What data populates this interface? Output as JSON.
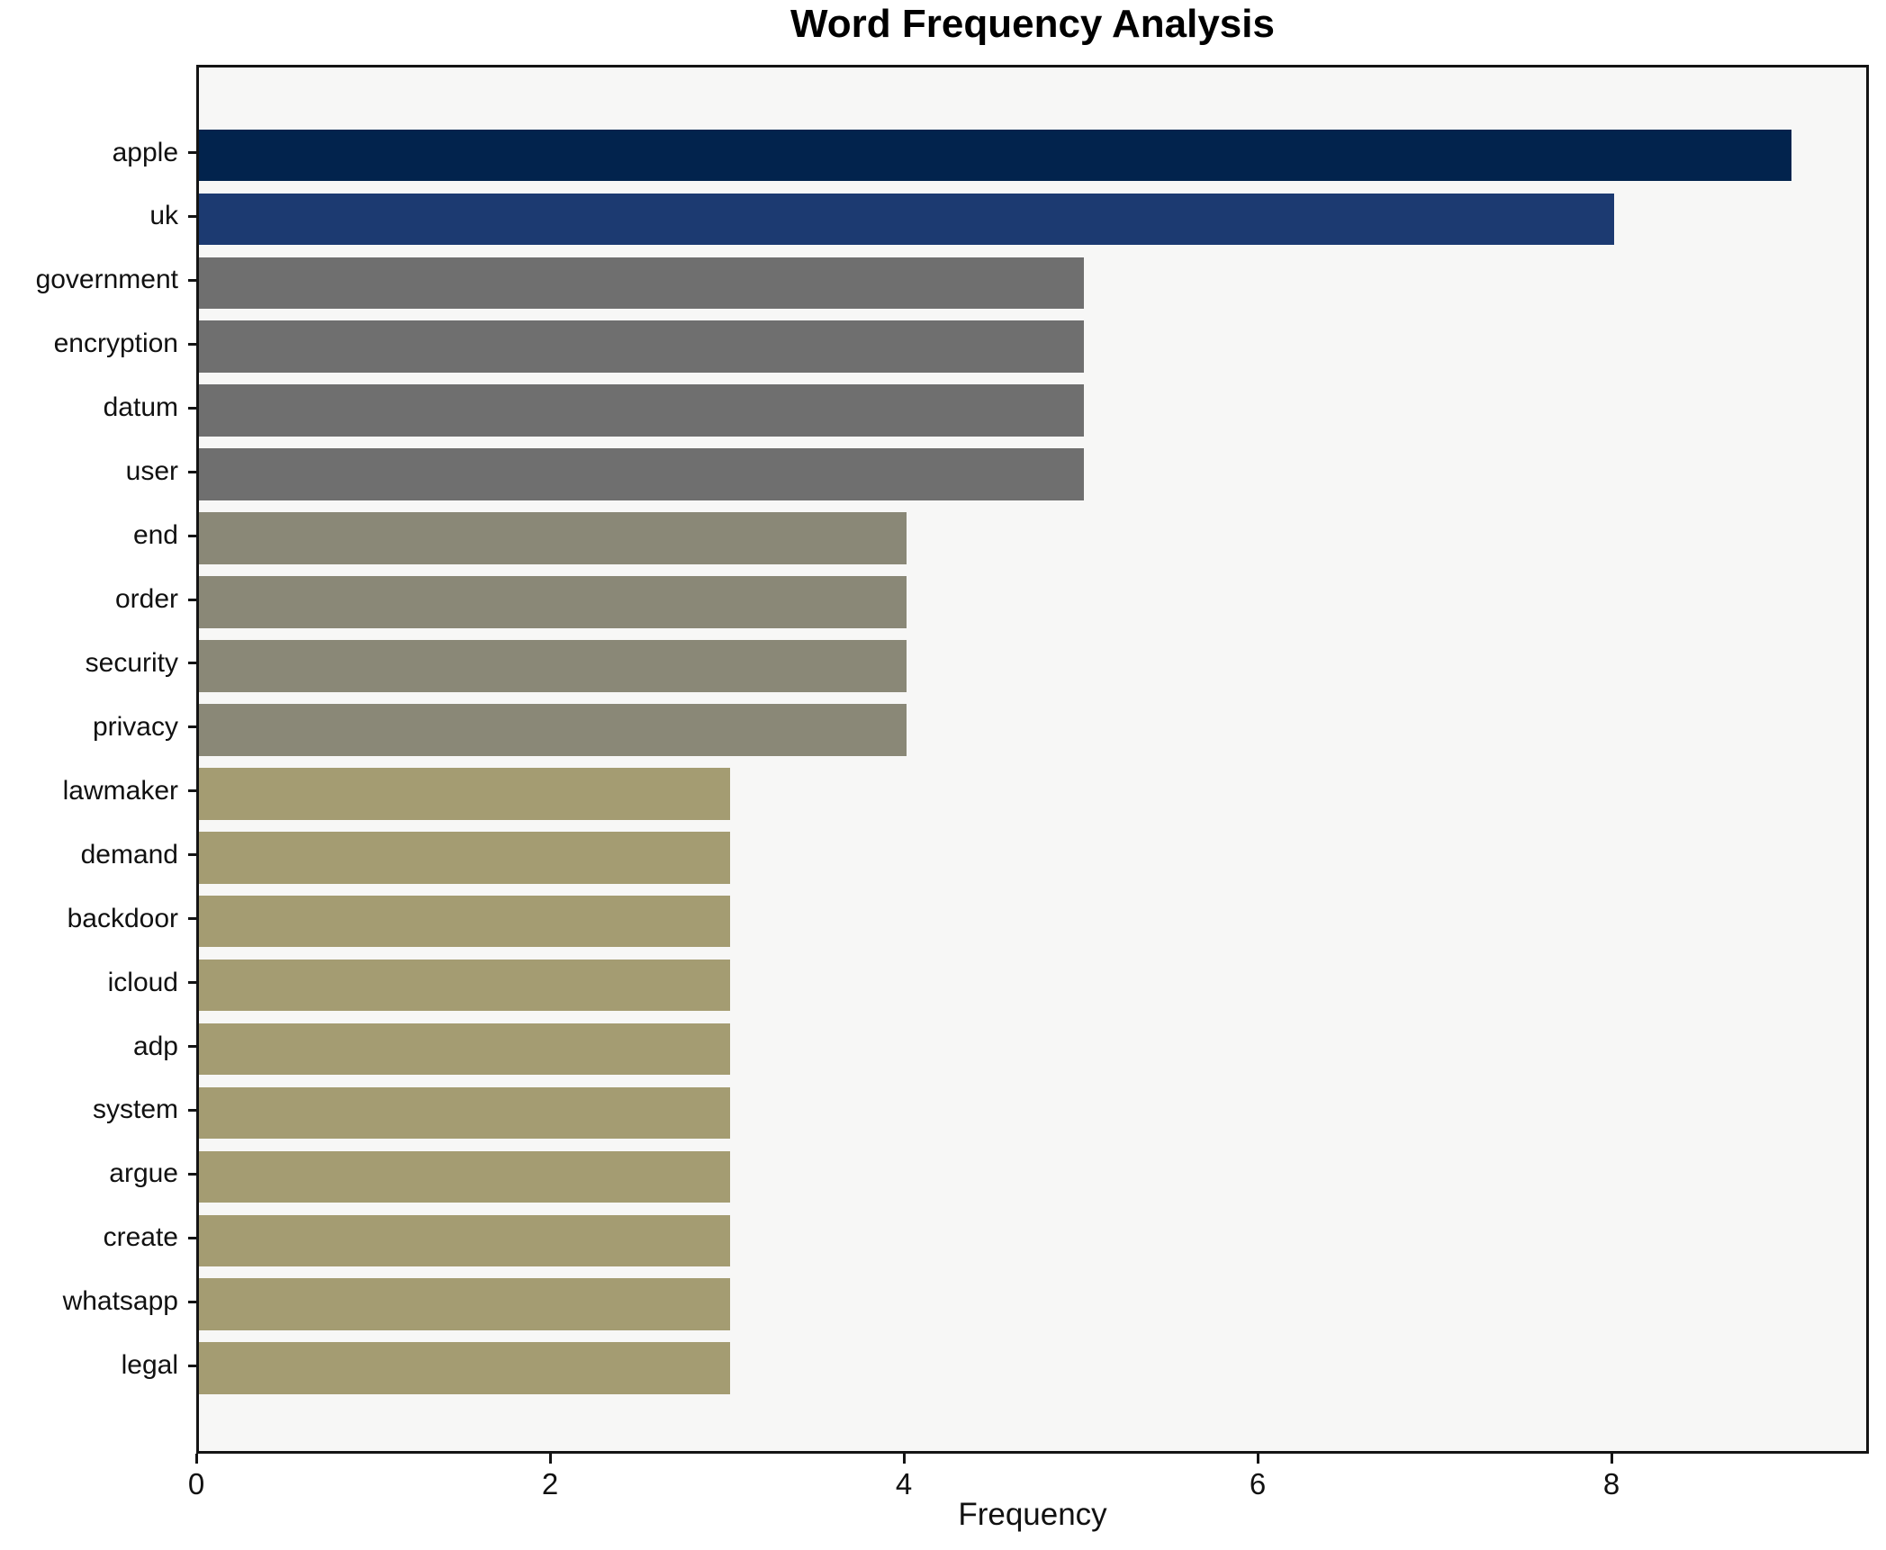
{
  "figure": {
    "background": "#ffffff",
    "plot_background": "#f7f7f6",
    "spine_color": "#141414",
    "text_color": "#111111"
  },
  "chart_data": {
    "type": "bar",
    "orientation": "horizontal",
    "title": "Word Frequency Analysis",
    "xlabel": "Frequency",
    "ylabel": "",
    "categories": [
      "apple",
      "uk",
      "government",
      "encryption",
      "datum",
      "user",
      "end",
      "order",
      "security",
      "privacy",
      "lawmaker",
      "demand",
      "backdoor",
      "icloud",
      "adp",
      "system",
      "argue",
      "create",
      "whatsapp",
      "legal"
    ],
    "values": [
      9,
      8,
      5,
      5,
      5,
      5,
      4,
      4,
      4,
      4,
      3,
      3,
      3,
      3,
      3,
      3,
      3,
      3,
      3,
      3
    ],
    "bar_colors": [
      "#02234d",
      "#1c3a71",
      "#6f6f6f",
      "#6f6f6f",
      "#6f6f6f",
      "#6f6f6f",
      "#8a8877",
      "#8a8877",
      "#8a8877",
      "#8a8877",
      "#a49c72",
      "#a49c72",
      "#a49c72",
      "#a49c72",
      "#a49c72",
      "#a49c72",
      "#a49c72",
      "#a49c72",
      "#a49c72",
      "#a49c72"
    ],
    "xlim": [
      0,
      9.455
    ],
    "xticks": [
      "0",
      "2",
      "4",
      "6",
      "8"
    ],
    "xtick_values": [
      0,
      2,
      4,
      6,
      8
    ],
    "grid": false,
    "legend": null
  }
}
